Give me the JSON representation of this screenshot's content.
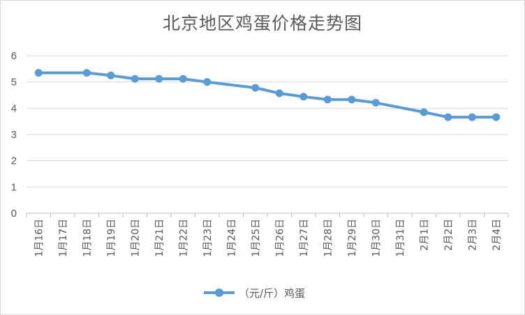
{
  "chart_data": {
    "type": "line",
    "title": "北京地区鸡蛋价格走势图",
    "categories": [
      "1月16日",
      "1月17日",
      "1月18日",
      "1月19日",
      "1月20日",
      "1月21日",
      "1月22日",
      "1月23日",
      "1月24日",
      "1月25日",
      "1月26日",
      "1月27日",
      "1月28日",
      "1月29日",
      "1月30日",
      "1月31日",
      "2月1日",
      "2月2日",
      "2月3日",
      "2月4日"
    ],
    "series": [
      {
        "name": "（元/斤）鸡蛋",
        "values": [
          5.35,
          null,
          5.35,
          5.25,
          5.12,
          5.12,
          5.12,
          5.0,
          null,
          4.78,
          4.57,
          4.44,
          4.33,
          4.33,
          4.21,
          null,
          3.85,
          3.66,
          3.66,
          3.66
        ],
        "color": "#5b9bd5"
      }
    ],
    "ylim": [
      0,
      6
    ],
    "yticks": [
      0,
      1,
      2,
      3,
      4,
      5,
      6
    ],
    "grid": true,
    "legend": "bottom"
  }
}
